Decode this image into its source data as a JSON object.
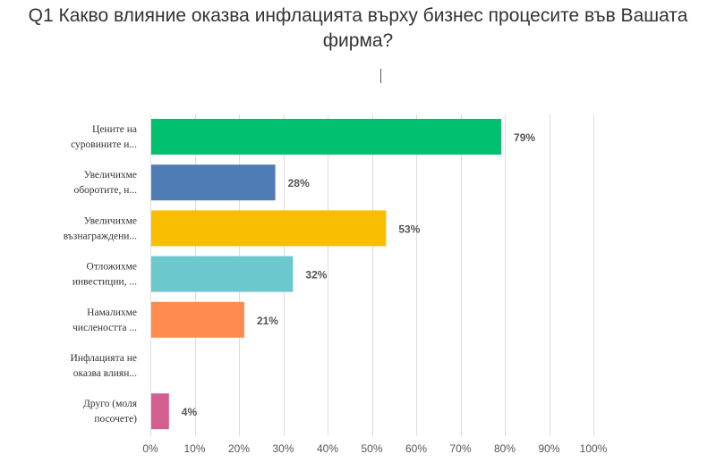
{
  "chart_data": {
    "type": "bar",
    "orientation": "horizontal",
    "title": "Q1 Какво влияние оказва инфлацията върху бизнес процесите във Вашата фирма?",
    "categories": [
      [
        "Цените на",
        "суровините и..."
      ],
      [
        "Увеличихме",
        "оборотите, н..."
      ],
      [
        "Увеличихме",
        "възнаграждени..."
      ],
      [
        "Отложихме",
        "инвестиции, ..."
      ],
      [
        "Намалихме",
        "числеността ..."
      ],
      [
        "Инфлацията не",
        "оказва влиян..."
      ],
      [
        "Друго (моля",
        "посочете)"
      ]
    ],
    "values": [
      79,
      28,
      53,
      32,
      21,
      0,
      4
    ],
    "data_labels": [
      "79%",
      "28%",
      "53%",
      "32%",
      "21%",
      "",
      "4%"
    ],
    "colors": [
      "#00bf6f",
      "#507cb6",
      "#f9be00",
      "#6bc8cd",
      "#ff8b4f",
      "#7f7fff",
      "#d25f90"
    ],
    "xlim": [
      0,
      100
    ],
    "xticks": [
      "0%",
      "10%",
      "20%",
      "30%",
      "40%",
      "50%",
      "60%",
      "70%",
      "80%",
      "90%",
      "100%"
    ],
    "grid": true,
    "gridline_color": "#dddddd",
    "xlabel": "",
    "ylabel": ""
  }
}
